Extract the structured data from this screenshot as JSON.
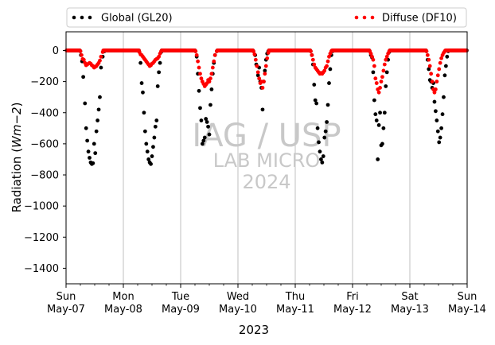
{
  "chart_data": {
    "type": "scatter",
    "title": "",
    "xlabel": "2023",
    "ylabel": "Radiation (Wm−2)",
    "ylabel_main": "Radiation (",
    "ylabel_unit": "Wm−2",
    "ylabel_close": ")",
    "xlim": [
      0,
      7
    ],
    "ylim": [
      -1500,
      120
    ],
    "yticks": [
      0,
      -200,
      -400,
      -600,
      -800,
      -1000,
      -1200,
      -1400
    ],
    "xticks": [
      {
        "pos": 0,
        "day": "Sun",
        "date": "May-07"
      },
      {
        "pos": 1,
        "day": "Mon",
        "date": "May-08"
      },
      {
        "pos": 2,
        "day": "Tue",
        "date": "May-09"
      },
      {
        "pos": 3,
        "day": "Wed",
        "date": "May-10"
      },
      {
        "pos": 4,
        "day": "Thu",
        "date": "May-11"
      },
      {
        "pos": 5,
        "day": "Fri",
        "date": "May-12"
      },
      {
        "pos": 6,
        "day": "Sat",
        "date": "May-13"
      },
      {
        "pos": 7,
        "day": "Sun",
        "date": "May-14"
      }
    ],
    "grid": "x-major",
    "legend_position": "top (above plot, two columns)",
    "series": [
      {
        "name": "Global (GL20)",
        "color": "#000000",
        "days": [
          [
            [
              0.25,
              -5
            ],
            [
              0.26,
              -30
            ],
            [
              0.28,
              -70
            ],
            [
              0.3,
              -170
            ],
            [
              0.33,
              -340
            ],
            [
              0.35,
              -500
            ],
            [
              0.37,
              -580
            ],
            [
              0.39,
              -650
            ],
            [
              0.41,
              -690
            ],
            [
              0.43,
              -720
            ],
            [
              0.45,
              -730
            ],
            [
              0.47,
              -725
            ],
            [
              0.49,
              -600
            ],
            [
              0.51,
              -660
            ],
            [
              0.53,
              -520
            ],
            [
              0.55,
              -450
            ],
            [
              0.57,
              -380
            ],
            [
              0.59,
              -300
            ],
            [
              0.61,
              -110
            ],
            [
              0.64,
              -40
            ],
            [
              0.67,
              -5
            ]
          ],
          [
            [
              0.28,
              -10
            ],
            [
              0.3,
              -80
            ],
            [
              0.32,
              -210
            ],
            [
              0.34,
              -270
            ],
            [
              0.36,
              -400
            ],
            [
              0.38,
              -520
            ],
            [
              0.4,
              -600
            ],
            [
              0.42,
              -650
            ],
            [
              0.44,
              -700
            ],
            [
              0.46,
              -720
            ],
            [
              0.48,
              -730
            ],
            [
              0.5,
              -680
            ],
            [
              0.52,
              -620
            ],
            [
              0.54,
              -560
            ],
            [
              0.56,
              -490
            ],
            [
              0.58,
              -450
            ],
            [
              0.6,
              -230
            ],
            [
              0.62,
              -140
            ],
            [
              0.64,
              -80
            ],
            [
              0.66,
              -10
            ]
          ],
          [
            [
              0.26,
              -5
            ],
            [
              0.28,
              -40
            ],
            [
              0.3,
              -150
            ],
            [
              0.32,
              -260
            ],
            [
              0.34,
              -370
            ],
            [
              0.36,
              -450
            ],
            [
              0.38,
              -600
            ],
            [
              0.4,
              -580
            ],
            [
              0.42,
              -560
            ],
            [
              0.44,
              -440
            ],
            [
              0.46,
              -460
            ],
            [
              0.48,
              -490
            ],
            [
              0.5,
              -540
            ],
            [
              0.52,
              -350
            ],
            [
              0.54,
              -250
            ],
            [
              0.56,
              -150
            ],
            [
              0.58,
              -80
            ],
            [
              0.6,
              -30
            ],
            [
              0.63,
              -5
            ]
          ],
          [
            [
              0.27,
              -5
            ],
            [
              0.3,
              -30
            ],
            [
              0.32,
              -90
            ],
            [
              0.35,
              -160
            ],
            [
              0.37,
              -110
            ],
            [
              0.39,
              -200
            ],
            [
              0.41,
              -240
            ],
            [
              0.43,
              -380
            ],
            [
              0.45,
              -200
            ],
            [
              0.47,
              -130
            ],
            [
              0.49,
              -60
            ],
            [
              0.51,
              -20
            ],
            [
              0.53,
              -5
            ]
          ],
          [
            [
              0.27,
              -5
            ],
            [
              0.29,
              -30
            ],
            [
              0.31,
              -90
            ],
            [
              0.33,
              -220
            ],
            [
              0.35,
              -320
            ],
            [
              0.37,
              -340
            ],
            [
              0.39,
              -500
            ],
            [
              0.41,
              -590
            ],
            [
              0.43,
              -650
            ],
            [
              0.45,
              -700
            ],
            [
              0.47,
              -720
            ],
            [
              0.49,
              -680
            ],
            [
              0.51,
              -560
            ],
            [
              0.53,
              -520
            ],
            [
              0.55,
              -460
            ],
            [
              0.57,
              -350
            ],
            [
              0.59,
              -210
            ],
            [
              0.61,
              -120
            ],
            [
              0.63,
              -30
            ],
            [
              0.65,
              -5
            ]
          ],
          [
            [
              0.3,
              -5
            ],
            [
              0.32,
              -30
            ],
            [
              0.34,
              -45
            ],
            [
              0.36,
              -140
            ],
            [
              0.38,
              -320
            ],
            [
              0.4,
              -410
            ],
            [
              0.42,
              -450
            ],
            [
              0.44,
              -700
            ],
            [
              0.46,
              -480
            ],
            [
              0.48,
              -400
            ],
            [
              0.5,
              -610
            ],
            [
              0.52,
              -600
            ],
            [
              0.54,
              -500
            ],
            [
              0.56,
              -400
            ],
            [
              0.58,
              -230
            ],
            [
              0.6,
              -140
            ],
            [
              0.62,
              -60
            ],
            [
              0.64,
              -10
            ]
          ],
          [
            [
              0.29,
              -5
            ],
            [
              0.31,
              -60
            ],
            [
              0.33,
              -120
            ],
            [
              0.35,
              -190
            ],
            [
              0.37,
              -200
            ],
            [
              0.39,
              -240
            ],
            [
              0.41,
              -210
            ],
            [
              0.43,
              -330
            ],
            [
              0.45,
              -390
            ],
            [
              0.47,
              -450
            ],
            [
              0.49,
              -520
            ],
            [
              0.51,
              -590
            ],
            [
              0.53,
              -560
            ],
            [
              0.55,
              -500
            ],
            [
              0.57,
              -410
            ],
            [
              0.59,
              -300
            ],
            [
              0.61,
              -160
            ],
            [
              0.63,
              -100
            ],
            [
              0.65,
              -40
            ],
            [
              0.67,
              -5
            ]
          ]
        ]
      },
      {
        "name": "Diffuse (DF10)",
        "color": "#ff0000",
        "days": [
          [
            [
              0.25,
              -5
            ],
            [
              0.27,
              -30
            ],
            [
              0.29,
              -55
            ],
            [
              0.31,
              -60
            ],
            [
              0.33,
              -80
            ],
            [
              0.35,
              -95
            ],
            [
              0.37,
              -90
            ],
            [
              0.39,
              -85
            ],
            [
              0.41,
              -80
            ],
            [
              0.43,
              -85
            ],
            [
              0.45,
              -95
            ],
            [
              0.47,
              -100
            ],
            [
              0.49,
              -110
            ],
            [
              0.51,
              -105
            ],
            [
              0.53,
              -100
            ],
            [
              0.55,
              -90
            ],
            [
              0.57,
              -80
            ],
            [
              0.59,
              -65
            ],
            [
              0.61,
              -40
            ],
            [
              0.64,
              -10
            ]
          ],
          [
            [
              0.28,
              -10
            ],
            [
              0.3,
              -25
            ],
            [
              0.32,
              -30
            ],
            [
              0.34,
              -40
            ],
            [
              0.36,
              -50
            ],
            [
              0.38,
              -60
            ],
            [
              0.4,
              -70
            ],
            [
              0.42,
              -80
            ],
            [
              0.44,
              -90
            ],
            [
              0.46,
              -100
            ],
            [
              0.48,
              -95
            ],
            [
              0.5,
              -85
            ],
            [
              0.52,
              -80
            ],
            [
              0.54,
              -70
            ],
            [
              0.56,
              -60
            ],
            [
              0.58,
              -55
            ],
            [
              0.6,
              -50
            ],
            [
              0.62,
              -40
            ],
            [
              0.64,
              -20
            ],
            [
              0.66,
              -5
            ]
          ],
          [
            [
              0.26,
              -5
            ],
            [
              0.28,
              -30
            ],
            [
              0.3,
              -70
            ],
            [
              0.32,
              -110
            ],
            [
              0.34,
              -150
            ],
            [
              0.36,
              -180
            ],
            [
              0.38,
              -200
            ],
            [
              0.4,
              -215
            ],
            [
              0.42,
              -230
            ],
            [
              0.44,
              -220
            ],
            [
              0.46,
              -210
            ],
            [
              0.48,
              -190
            ],
            [
              0.5,
              -200
            ],
            [
              0.52,
              -180
            ],
            [
              0.54,
              -150
            ],
            [
              0.56,
              -110
            ],
            [
              0.58,
              -70
            ],
            [
              0.6,
              -30
            ],
            [
              0.63,
              -5
            ]
          ],
          [
            [
              0.27,
              -5
            ],
            [
              0.29,
              -25
            ],
            [
              0.31,
              -60
            ],
            [
              0.33,
              -100
            ],
            [
              0.35,
              -140
            ],
            [
              0.37,
              -180
            ],
            [
              0.39,
              -210
            ],
            [
              0.41,
              -200
            ],
            [
              0.43,
              -240
            ],
            [
              0.45,
              -200
            ],
            [
              0.47,
              -150
            ],
            [
              0.49,
              -100
            ],
            [
              0.51,
              -50
            ],
            [
              0.53,
              -15
            ]
          ],
          [
            [
              0.27,
              -5
            ],
            [
              0.29,
              -30
            ],
            [
              0.31,
              -60
            ],
            [
              0.33,
              -90
            ],
            [
              0.35,
              -110
            ],
            [
              0.37,
              -120
            ],
            [
              0.39,
              -130
            ],
            [
              0.41,
              -140
            ],
            [
              0.43,
              -150
            ],
            [
              0.45,
              -145
            ],
            [
              0.47,
              -150
            ],
            [
              0.49,
              -140
            ],
            [
              0.51,
              -130
            ],
            [
              0.53,
              -110
            ],
            [
              0.55,
              -100
            ],
            [
              0.57,
              -70
            ],
            [
              0.59,
              -40
            ],
            [
              0.61,
              -20
            ],
            [
              0.63,
              -5
            ]
          ],
          [
            [
              0.3,
              -5
            ],
            [
              0.32,
              -20
            ],
            [
              0.34,
              -40
            ],
            [
              0.36,
              -60
            ],
            [
              0.38,
              -100
            ],
            [
              0.4,
              -180
            ],
            [
              0.42,
              -210
            ],
            [
              0.44,
              -250
            ],
            [
              0.46,
              -270
            ],
            [
              0.48,
              -240
            ],
            [
              0.5,
              -200
            ],
            [
              0.52,
              -170
            ],
            [
              0.54,
              -130
            ],
            [
              0.56,
              -90
            ],
            [
              0.58,
              -60
            ],
            [
              0.6,
              -40
            ],
            [
              0.62,
              -20
            ],
            [
              0.64,
              -5
            ]
          ],
          [
            [
              0.29,
              -5
            ],
            [
              0.31,
              -30
            ],
            [
              0.33,
              -60
            ],
            [
              0.35,
              -100
            ],
            [
              0.37,
              -150
            ],
            [
              0.39,
              -200
            ],
            [
              0.41,
              -250
            ],
            [
              0.43,
              -270
            ],
            [
              0.45,
              -250
            ],
            [
              0.47,
              -200
            ],
            [
              0.49,
              -160
            ],
            [
              0.51,
              -120
            ],
            [
              0.53,
              -80
            ],
            [
              0.55,
              -50
            ],
            [
              0.57,
              -30
            ],
            [
              0.59,
              -15
            ],
            [
              0.61,
              -5
            ]
          ]
        ]
      }
    ],
    "watermark": [
      "IAG / USP",
      "LAB MICRO",
      "2024"
    ]
  }
}
